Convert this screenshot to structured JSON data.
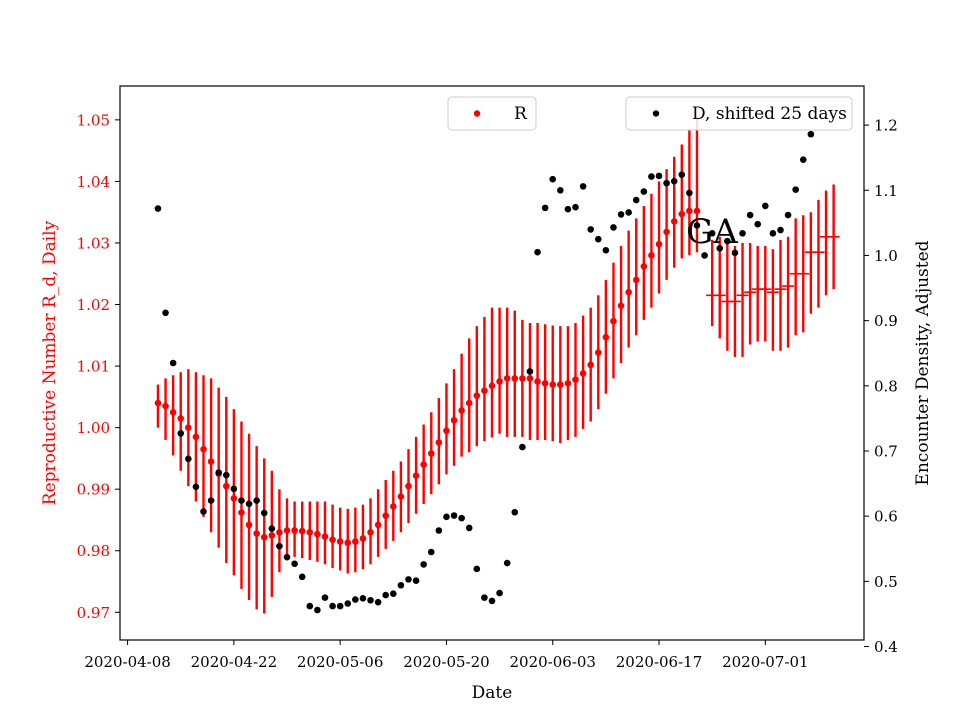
{
  "chart_data": {
    "type": "scatter",
    "annotation": "GA",
    "x_axis": {
      "label": "Date",
      "range": [
        "2020-04-07",
        "2020-07-14"
      ],
      "ticks": [
        "2020-04-08",
        "2020-04-22",
        "2020-05-06",
        "2020-05-20",
        "2020-06-03",
        "2020-06-17",
        "2020-07-01"
      ]
    },
    "y_left": {
      "label": "Reproductive Number R_d, Daily",
      "range": [
        0.9655,
        1.0555
      ],
      "ticks": [
        "0.97",
        "0.98",
        "0.99",
        "1.00",
        "1.01",
        "1.02",
        "1.03",
        "1.04",
        "1.05"
      ],
      "color": "#ff0000"
    },
    "y_right": {
      "label": "Encounter Density, Adjusted",
      "range": [
        0.41,
        1.26
      ],
      "ticks": [
        "0.4",
        "0.5",
        "0.6",
        "0.7",
        "0.8",
        "0.9",
        "1.0",
        "1.1",
        "1.2"
      ],
      "color": "#000000"
    },
    "legend_left": {
      "label": "R",
      "position": "top-center",
      "color": "#ff0000"
    },
    "legend_right": {
      "label": "D, shifted 25 days",
      "position": "top-right",
      "color": "#000000"
    },
    "series_R": {
      "name": "R",
      "color": "#ff0000",
      "start_date": "2020-04-12",
      "estimates": [
        1.004,
        1.0035,
        1.0025,
        1.0015,
        1.0,
        0.9985,
        0.9965,
        0.9945,
        0.9925,
        0.9905,
        0.9885,
        0.9862,
        0.9842,
        0.9828,
        0.9822,
        0.9825,
        0.983,
        0.9833,
        0.9833,
        0.9832,
        0.983,
        0.9827,
        0.9823,
        0.9818,
        0.9815,
        0.9813,
        0.9815,
        0.982,
        0.983,
        0.9842,
        0.9857,
        0.9872,
        0.9888,
        0.9905,
        0.9922,
        0.994,
        0.9958,
        0.9976,
        0.9995,
        1.0012,
        1.0028,
        1.004,
        1.0052,
        1.006,
        1.0068,
        1.0075,
        1.008,
        1.008,
        1.008,
        1.008,
        1.0075,
        1.0072,
        1.007,
        1.007,
        1.0072,
        1.0078,
        1.0088,
        1.0102,
        1.0122,
        1.0147,
        1.0173,
        1.0198,
        1.022,
        1.024,
        1.0262,
        1.028,
        1.0298,
        1.0318,
        1.0335,
        1.0347,
        1.0352,
        1.0352
      ],
      "lower": [
        1.0,
        0.998,
        0.9955,
        0.993,
        0.9905,
        0.988,
        0.9855,
        0.983,
        0.9805,
        0.978,
        0.976,
        0.9738,
        0.972,
        0.9705,
        0.9698,
        0.9725,
        0.9765,
        0.9785,
        0.979,
        0.9788,
        0.9785,
        0.9782,
        0.9778,
        0.9772,
        0.9768,
        0.9763,
        0.9765,
        0.977,
        0.9778,
        0.979,
        0.9803,
        0.9816,
        0.983,
        0.9845,
        0.986,
        0.9876,
        0.9892,
        0.9908,
        0.9924,
        0.9938,
        0.9953,
        0.996,
        0.997,
        0.9978,
        0.9984,
        0.999,
        0.9985,
        0.9985,
        0.9985,
        0.998,
        0.998,
        0.998,
        0.9978,
        0.9975,
        0.998,
        0.9985,
        0.9998,
        1.001,
        1.003,
        1.0055,
        1.008,
        1.0105,
        1.013,
        1.015,
        1.0175,
        1.0195,
        1.0218,
        1.024,
        1.026,
        1.0275,
        1.028,
        1.0285
      ],
      "upper": [
        1.007,
        1.008,
        1.0085,
        1.009,
        1.0095,
        1.009,
        1.0085,
        1.008,
        1.0065,
        1.005,
        1.003,
        1.001,
        0.999,
        0.997,
        0.995,
        0.993,
        0.99,
        0.9885,
        0.988,
        0.988,
        0.988,
        0.988,
        0.988,
        0.9875,
        0.987,
        0.9868,
        0.987,
        0.9875,
        0.9885,
        0.99,
        0.9915,
        0.993,
        0.9945,
        0.9965,
        0.9985,
        1.0005,
        1.0025,
        1.0048,
        1.0072,
        1.0095,
        1.012,
        1.0145,
        1.0165,
        1.018,
        1.0195,
        1.0195,
        1.0195,
        1.019,
        1.0175,
        1.017,
        1.017,
        1.0168,
        1.0166,
        1.0165,
        1.0165,
        1.017,
        1.0182,
        1.0195,
        1.0215,
        1.024,
        1.0268,
        1.0295,
        1.032,
        1.034,
        1.036,
        1.038,
        1.04,
        1.042,
        1.044,
        1.046,
        1.0485,
        1.0505
      ]
    },
    "series_R_projection": {
      "start_date": "2020-06-24",
      "estimates": [
        1.0215,
        1.0215,
        1.0205,
        1.0205,
        1.0215,
        1.022,
        1.0225,
        1.0225,
        1.022,
        1.0225,
        1.023,
        1.025,
        1.025,
        1.0285,
        1.0285,
        1.031,
        1.031
      ],
      "lower": [
        1.0165,
        1.0145,
        1.0125,
        1.0115,
        1.0115,
        1.0135,
        1.014,
        1.014,
        1.0125,
        1.0125,
        1.013,
        1.015,
        1.0155,
        1.0185,
        1.0195,
        1.0215,
        1.0225
      ],
      "upper": [
        1.0305,
        1.031,
        1.03,
        1.0295,
        1.03,
        1.03,
        1.0295,
        1.0295,
        1.029,
        1.0305,
        1.031,
        1.034,
        1.0345,
        1.035,
        1.037,
        1.0385,
        1.0395
      ]
    },
    "series_D": {
      "name": "D, shifted 25 days",
      "color": "#000000",
      "points": [
        [
          "2020-04-12",
          1.072
        ],
        [
          "2020-04-13",
          0.912
        ],
        [
          "2020-04-14",
          0.835
        ],
        [
          "2020-04-15",
          0.727
        ],
        [
          "2020-04-16",
          0.688
        ],
        [
          "2020-04-17",
          0.645
        ],
        [
          "2020-04-18",
          0.607
        ],
        [
          "2020-04-19",
          0.624
        ],
        [
          "2020-04-20",
          0.667
        ],
        [
          "2020-04-21",
          0.663
        ],
        [
          "2020-04-22",
          0.642
        ],
        [
          "2020-04-23",
          0.624
        ],
        [
          "2020-04-24",
          0.619
        ],
        [
          "2020-04-25",
          0.624
        ],
        [
          "2020-04-26",
          0.605
        ],
        [
          "2020-04-27",
          0.581
        ],
        [
          "2020-04-28",
          0.554
        ],
        [
          "2020-04-29",
          0.537
        ],
        [
          "2020-04-30",
          0.527
        ],
        [
          "2020-05-01",
          0.507
        ],
        [
          "2020-05-02",
          0.462
        ],
        [
          "2020-05-03",
          0.456
        ],
        [
          "2020-05-04",
          0.475
        ],
        [
          "2020-05-05",
          0.462
        ],
        [
          "2020-05-06",
          0.462
        ],
        [
          "2020-05-07",
          0.466
        ],
        [
          "2020-05-08",
          0.472
        ],
        [
          "2020-05-09",
          0.474
        ],
        [
          "2020-05-10",
          0.471
        ],
        [
          "2020-05-11",
          0.468
        ],
        [
          "2020-05-12",
          0.479
        ],
        [
          "2020-05-13",
          0.481
        ],
        [
          "2020-05-14",
          0.494
        ],
        [
          "2020-05-15",
          0.503
        ],
        [
          "2020-05-16",
          0.501
        ],
        [
          "2020-05-17",
          0.526
        ],
        [
          "2020-05-18",
          0.545
        ],
        [
          "2020-05-19",
          0.578
        ],
        [
          "2020-05-20",
          0.599
        ],
        [
          "2020-05-21",
          0.601
        ],
        [
          "2020-05-22",
          0.597
        ],
        [
          "2020-05-23",
          0.582
        ],
        [
          "2020-05-24",
          0.519
        ],
        [
          "2020-05-25",
          0.475
        ],
        [
          "2020-05-26",
          0.47
        ],
        [
          "2020-05-27",
          0.482
        ],
        [
          "2020-05-28",
          0.528
        ],
        [
          "2020-05-29",
          0.606
        ],
        [
          "2020-05-30",
          0.706
        ],
        [
          "2020-05-31",
          0.822
        ],
        [
          "2020-06-01",
          1.005
        ],
        [
          "2020-06-02",
          1.073
        ],
        [
          "2020-06-03",
          1.117
        ],
        [
          "2020-06-04",
          1.1
        ],
        [
          "2020-06-05",
          1.071
        ],
        [
          "2020-06-06",
          1.074
        ],
        [
          "2020-06-07",
          1.106
        ],
        [
          "2020-06-08",
          1.04
        ],
        [
          "2020-06-09",
          1.025
        ],
        [
          "2020-06-10",
          1.008
        ],
        [
          "2020-06-11",
          1.043
        ],
        [
          "2020-06-12",
          1.063
        ],
        [
          "2020-06-13",
          1.066
        ],
        [
          "2020-06-14",
          1.085
        ],
        [
          "2020-06-15",
          1.098
        ],
        [
          "2020-06-16",
          1.121
        ],
        [
          "2020-06-17",
          1.122
        ],
        [
          "2020-06-18",
          1.111
        ],
        [
          "2020-06-19",
          1.114
        ],
        [
          "2020-06-20",
          1.124
        ],
        [
          "2020-06-21",
          1.096
        ],
        [
          "2020-06-22",
          1.046
        ],
        [
          "2020-06-23",
          1.0
        ],
        [
          "2020-06-24",
          1.034
        ],
        [
          "2020-06-25",
          1.011
        ],
        [
          "2020-06-26",
          1.022
        ],
        [
          "2020-06-27",
          1.004
        ],
        [
          "2020-06-28",
          1.034
        ],
        [
          "2020-06-29",
          1.062
        ],
        [
          "2020-06-30",
          1.048
        ],
        [
          "2020-07-01",
          1.076
        ],
        [
          "2020-07-02",
          1.034
        ],
        [
          "2020-07-03",
          1.039
        ],
        [
          "2020-07-04",
          1.062
        ],
        [
          "2020-07-05",
          1.101
        ],
        [
          "2020-07-06",
          1.147
        ],
        [
          "2020-07-07",
          1.186
        ]
      ]
    }
  }
}
